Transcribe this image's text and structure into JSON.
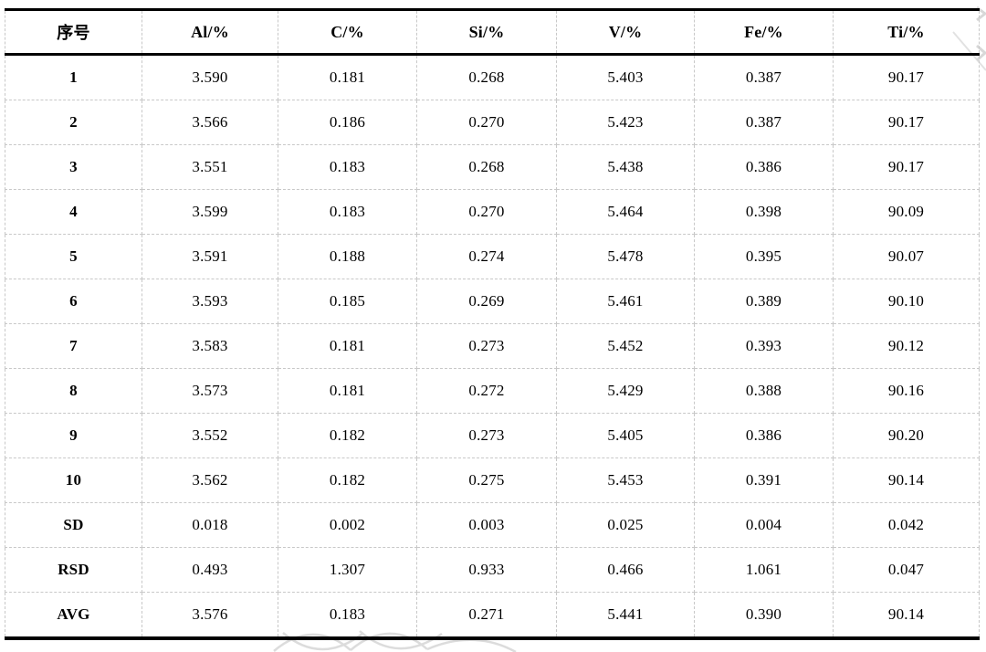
{
  "table": {
    "columns": [
      "序号",
      "Al/%",
      "C/%",
      "Si/%",
      "V/%",
      "Fe/%",
      "Ti/%"
    ],
    "rows": [
      {
        "label": "1",
        "values": [
          "3.590",
          "0.181",
          "0.268",
          "5.403",
          "0.387",
          "90.17"
        ]
      },
      {
        "label": "2",
        "values": [
          "3.566",
          "0.186",
          "0.270",
          "5.423",
          "0.387",
          "90.17"
        ]
      },
      {
        "label": "3",
        "values": [
          "3.551",
          "0.183",
          "0.268",
          "5.438",
          "0.386",
          "90.17"
        ]
      },
      {
        "label": "4",
        "values": [
          "3.599",
          "0.183",
          "0.270",
          "5.464",
          "0.398",
          "90.09"
        ]
      },
      {
        "label": "5",
        "values": [
          "3.591",
          "0.188",
          "0.274",
          "5.478",
          "0.395",
          "90.07"
        ]
      },
      {
        "label": "6",
        "values": [
          "3.593",
          "0.185",
          "0.269",
          "5.461",
          "0.389",
          "90.10"
        ]
      },
      {
        "label": "7",
        "values": [
          "3.583",
          "0.181",
          "0.273",
          "5.452",
          "0.393",
          "90.12"
        ]
      },
      {
        "label": "8",
        "values": [
          "3.573",
          "0.181",
          "0.272",
          "5.429",
          "0.388",
          "90.16"
        ]
      },
      {
        "label": "9",
        "values": [
          "3.552",
          "0.182",
          "0.273",
          "5.405",
          "0.386",
          "90.20"
        ]
      },
      {
        "label": "10",
        "values": [
          "3.562",
          "0.182",
          "0.275",
          "5.453",
          "0.391",
          "90.14"
        ]
      },
      {
        "label": "SD",
        "values": [
          "0.018",
          "0.002",
          "0.003",
          "0.025",
          "0.004",
          "0.042"
        ]
      },
      {
        "label": "RSD",
        "values": [
          "0.493",
          "1.307",
          "0.933",
          "0.466",
          "1.061",
          "0.047"
        ]
      },
      {
        "label": "AVG",
        "values": [
          "3.576",
          "0.183",
          "0.271",
          "5.441",
          "0.390",
          "90.14"
        ]
      }
    ]
  },
  "colors": {
    "text": "#000000",
    "thick_rule": "#000000",
    "gridline": "#c8c8c8",
    "watermark": "#dcdcdc",
    "background": "#ffffff"
  }
}
